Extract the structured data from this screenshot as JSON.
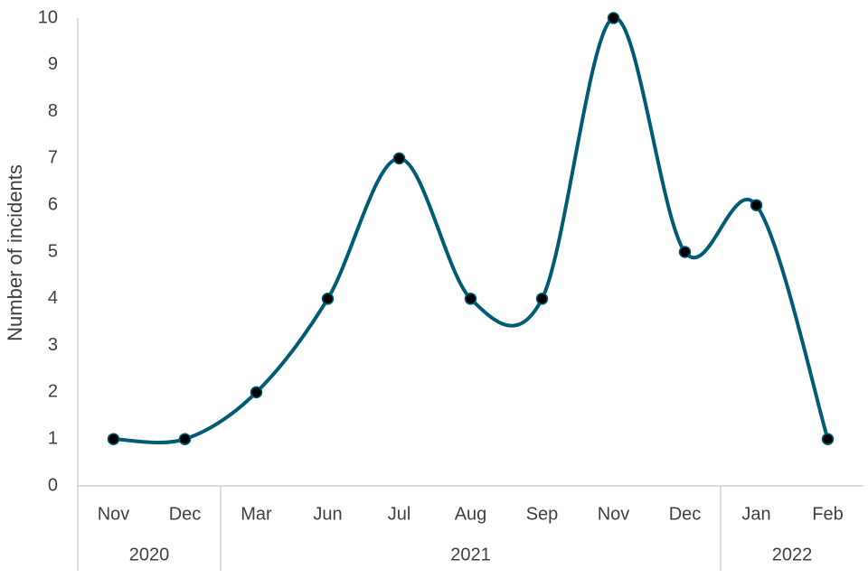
{
  "chart_data": {
    "type": "line",
    "y_label": "Number of incidents",
    "categories": [
      "Nov",
      "Dec",
      "Mar",
      "Jun",
      "Jul",
      "Aug",
      "Sep",
      "Nov",
      "Dec",
      "Jan",
      "Feb"
    ],
    "category_groups": [
      {
        "label": "2020",
        "span": 2
      },
      {
        "label": "2021",
        "span": 7
      },
      {
        "label": "2022",
        "span": 2
      }
    ],
    "values": [
      1,
      1,
      2,
      4,
      7,
      4,
      4,
      10,
      5,
      6,
      1
    ],
    "color": "#005b75",
    "smooth": true,
    "ylim": [
      0,
      10
    ],
    "yticks": [
      0,
      1,
      2,
      3,
      4,
      5,
      6,
      7,
      8,
      9,
      10
    ]
  }
}
